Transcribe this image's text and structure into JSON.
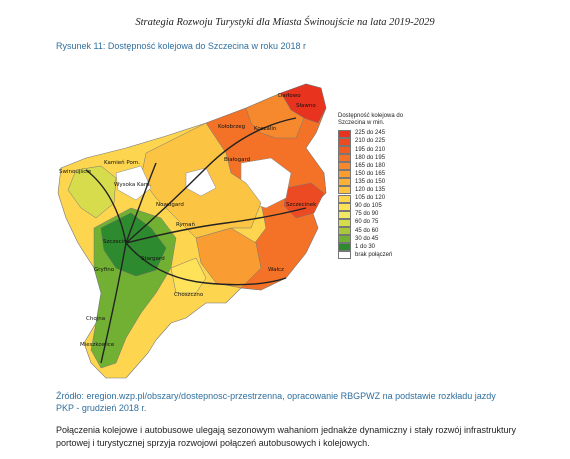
{
  "header": {
    "title": "Strategia Rozwoju Turystyki dla Miasta Świnoujście na lata 2019-2029"
  },
  "figure": {
    "caption": "Rysunek 11: Dostępność kolejowa do Szczecina w roku 2018 r"
  },
  "legend": {
    "title": "Dostępność kolejowa do Szczecina w min.",
    "items": [
      {
        "label": "225 do 245",
        "color": "#e8331f"
      },
      {
        "label": "210 do 225",
        "color": "#ec4a22"
      },
      {
        "label": "195 do 210",
        "color": "#ef5c24"
      },
      {
        "label": "180 do 195",
        "color": "#f37228"
      },
      {
        "label": "165 do 180",
        "color": "#f6882d"
      },
      {
        "label": "150 do 165",
        "color": "#f99d33"
      },
      {
        "label": "135 do 150",
        "color": "#fab13a"
      },
      {
        "label": "120 do 135",
        "color": "#fcc443"
      },
      {
        "label": "105 do 120",
        "color": "#fdd54e"
      },
      {
        "label": "90 do 105",
        "color": "#fde25a"
      },
      {
        "label": "75 do  90",
        "color": "#f3e866"
      },
      {
        "label": "60 do  75",
        "color": "#d6dc4c"
      },
      {
        "label": "45 do  60",
        "color": "#a8c83a"
      },
      {
        "label": "30 do  45",
        "color": "#72b034"
      },
      {
        "label": "1 do  30",
        "color": "#2e8a2e"
      },
      {
        "label": "brak połączeń",
        "color": "#ffffff"
      }
    ]
  },
  "map": {
    "places": [
      "Darłowo",
      "Sławno",
      "Kołobrzeg",
      "Koszalin",
      "Świnoujście",
      "Kamień Pom.",
      "Wysoka Kam.",
      "Białogard",
      "Szczecinek",
      "Nowogard",
      "Szczecin",
      "Rymań",
      "Stargard",
      "Gryfino",
      "Wałcz",
      "Choszczno",
      "Chojna",
      "Mieszkowice"
    ]
  },
  "source": {
    "text": "Źródło: eregion.wzp.pl/obszary/dostepnosc-przestrzenna, opracowanie RBGPWZ na podstawie rozkładu jazdy PKP - grudzień 2018 r."
  },
  "body": {
    "text": "Połączenia kolejowe i autobusowe ulegają sezonowym wahaniom jednakże dynamiczny i stały rozwój infrastruktury portowej i turystycznej sprzyja rozwojowi połączeń autobusowych i kolejowych."
  }
}
